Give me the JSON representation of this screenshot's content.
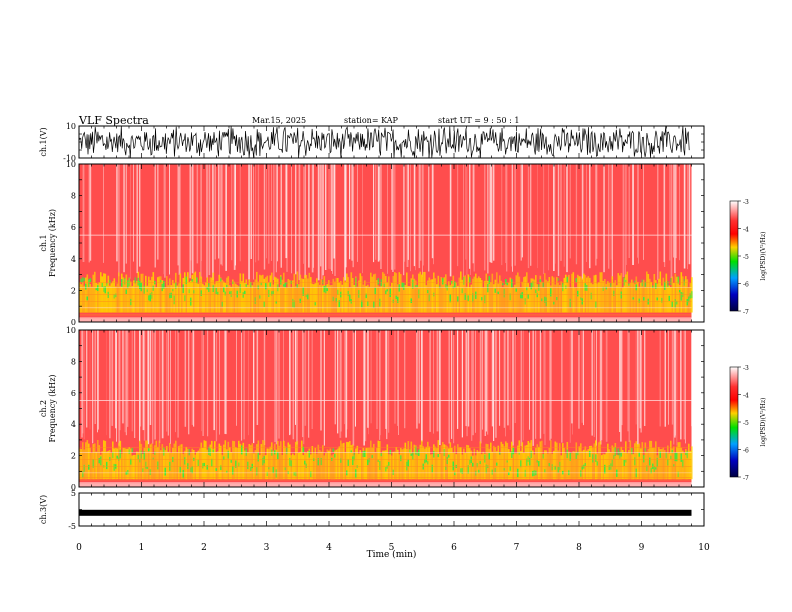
{
  "header": {
    "title": "VLF Spectra",
    "date": "Mar.15, 2025",
    "station": "station= KAP",
    "start": "start UT =  9 : 50 : 1"
  },
  "chart_data": [
    {
      "type": "line",
      "panel": "waveform-ch1",
      "ylabel": "ch.1(V)",
      "ylim": [
        -10,
        10
      ],
      "yticks": [
        "10",
        "-10"
      ],
      "xlim": [
        0,
        10
      ],
      "description_values": {
        "amplitude_range": [
          -10,
          10
        ]
      }
    },
    {
      "type": "heatmap",
      "panel": "spectrogram-ch1",
      "ylabel": "ch.1\nFrequency (kHz)",
      "ylim": [
        0,
        10
      ],
      "yticks": [
        "0",
        "2",
        "4",
        "6",
        "8",
        "10"
      ],
      "xlim": [
        0,
        10
      ],
      "data_end_min": 9.8,
      "dominant_band_khz": [
        0.6,
        3.2
      ],
      "colorbar": {
        "label": "log(PSD)(V²/Hz)",
        "range": [
          -7,
          -3
        ],
        "ticks": [
          "-3",
          "-4",
          "-5",
          "-6",
          "-7"
        ]
      }
    },
    {
      "type": "heatmap",
      "panel": "spectrogram-ch2",
      "ylabel": "ch.2\nFrequency (kHz)",
      "ylim": [
        0,
        10
      ],
      "yticks": [
        "0",
        "2",
        "4",
        "6",
        "8",
        "10"
      ],
      "xlim": [
        0,
        10
      ],
      "data_end_min": 9.8,
      "dominant_band_khz": [
        0.5,
        3.0
      ],
      "colorbar": {
        "label": "log(PSD)(V²/Hz)",
        "range": [
          -7,
          -3
        ],
        "ticks": [
          "-3",
          "-4",
          "-5",
          "-6",
          "-7"
        ]
      }
    },
    {
      "type": "line",
      "panel": "waveform-ch3",
      "ylabel": "ch.3(V)",
      "ylim": [
        -5,
        5
      ],
      "yticks": [
        "5",
        "-5"
      ],
      "xlim": [
        0,
        10
      ],
      "level_v": -1,
      "xlabel": "Time (min)",
      "xticks": [
        "0",
        "1",
        "2",
        "3",
        "4",
        "5",
        "6",
        "7",
        "8",
        "9",
        "10"
      ]
    }
  ],
  "colors": {
    "spectrogram_background": "#ff4d4d",
    "band_yellow": "#ffd000",
    "band_green": "#3ee83e",
    "colorbar_stops": [
      "#ffffff",
      "#ff0000",
      "#ffd000",
      "#00e000",
      "#00a0ff",
      "#0000c0",
      "#000040"
    ]
  }
}
